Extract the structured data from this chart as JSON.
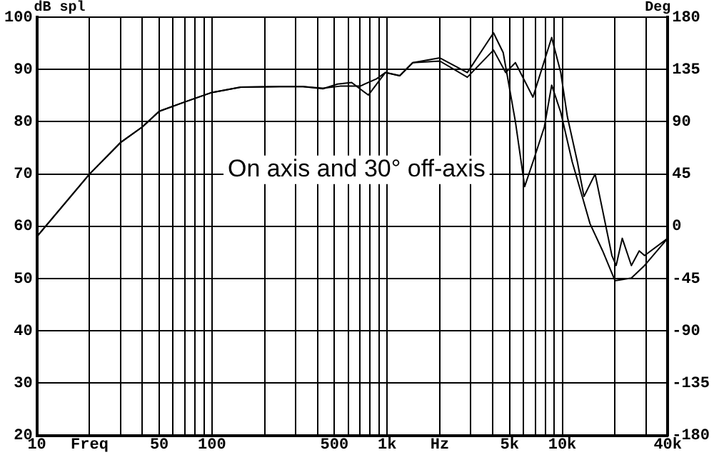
{
  "chart_data": {
    "type": "line",
    "ylabel": "dB spl",
    "y2label": "Deg",
    "annotations": [
      "On axis and 30° off-axis"
    ],
    "xlim": [
      10,
      40000
    ],
    "xticks": [
      10,
      {
        "value": 20,
        "label": "Freq"
      },
      {
        "value": 30,
        "label": null
      },
      {
        "value": 40,
        "label": null
      },
      50,
      {
        "value": 60,
        "label": null
      },
      {
        "value": 70,
        "label": null
      },
      {
        "value": 80,
        "label": null
      },
      {
        "value": 90,
        "label": null
      },
      100,
      {
        "value": 200,
        "label": null
      },
      {
        "value": 300,
        "label": null
      },
      {
        "value": 400,
        "label": null
      },
      500,
      {
        "value": 600,
        "label": null
      },
      {
        "value": 700,
        "label": null
      },
      {
        "value": 800,
        "label": null
      },
      {
        "value": 900,
        "label": null
      },
      {
        "value": 1000,
        "label": "1k"
      },
      {
        "value": 2000,
        "label": "Hz"
      },
      {
        "value": 3000,
        "label": null
      },
      {
        "value": 4000,
        "label": null
      },
      {
        "value": 5000,
        "label": "5k"
      },
      {
        "value": 6000,
        "label": null
      },
      {
        "value": 7000,
        "label": null
      },
      {
        "value": 8000,
        "label": null
      },
      {
        "value": 9000,
        "label": null
      },
      {
        "value": 10000,
        "label": "10k"
      },
      {
        "value": 20000,
        "label": null
      },
      {
        "value": 30000,
        "label": null
      },
      {
        "value": 40000,
        "label": "40k"
      }
    ],
    "ylim": [
      20,
      100
    ],
    "yticks": [
      20,
      30,
      40,
      50,
      60,
      70,
      80,
      90,
      100
    ],
    "y2lim": [
      -180,
      180
    ],
    "y2ticks": [
      -180,
      -135,
      -90,
      -45,
      0,
      45,
      90,
      135,
      180
    ],
    "grid": true,
    "log": "x",
    "legend": false,
    "marker": "none",
    "line_style": "solid",
    "series": [
      {
        "color": "#000000",
        "x": [
          10,
          20,
          30,
          40,
          50,
          73,
          100,
          146,
          243,
          331,
          430,
          520,
          627,
          781,
          977,
          1180,
          1400,
          2000,
          2870,
          4050,
          4600,
          5400,
          6100,
          6800,
          7900,
          8700,
          9800,
          11400,
          13000,
          14400,
          17000,
          20000,
          24800,
          29500,
          40000
        ],
        "values": [
          58,
          70,
          76,
          79,
          82,
          84,
          85.6,
          86.6,
          86.7,
          86.7,
          86.3,
          87.2,
          87.5,
          85.1,
          89.4,
          88.8,
          91.3,
          92.2,
          89.4,
          97,
          93.2,
          80,
          67.6,
          72.3,
          79,
          87,
          81.8,
          72.3,
          65.7,
          60.5,
          55.3,
          49.6,
          50.1,
          52.5,
          57.7
        ]
      },
      {
        "color": "#000000",
        "x": [
          10,
          20,
          30,
          40,
          50,
          73,
          100,
          146,
          243,
          331,
          430,
          540,
          700,
          870,
          977,
          1180,
          1400,
          2000,
          2870,
          4050,
          4750,
          5400,
          6800,
          8700,
          9800,
          10700,
          12200,
          13300,
          15400,
          19200,
          20300,
          22000,
          24800,
          27500,
          29500,
          40000
        ],
        "values": [
          58,
          70,
          76,
          79,
          82,
          84,
          85.6,
          86.6,
          86.7,
          86.7,
          86.4,
          86.8,
          86.8,
          88.2,
          89.4,
          88.8,
          91.3,
          91.6,
          88.5,
          93.7,
          89.4,
          91.3,
          84.7,
          96.1,
          89.4,
          80.9,
          72.3,
          65.7,
          70,
          54.4,
          52.5,
          57.7,
          52.5,
          55.3,
          54.4,
          57.7
        ]
      }
    ]
  }
}
